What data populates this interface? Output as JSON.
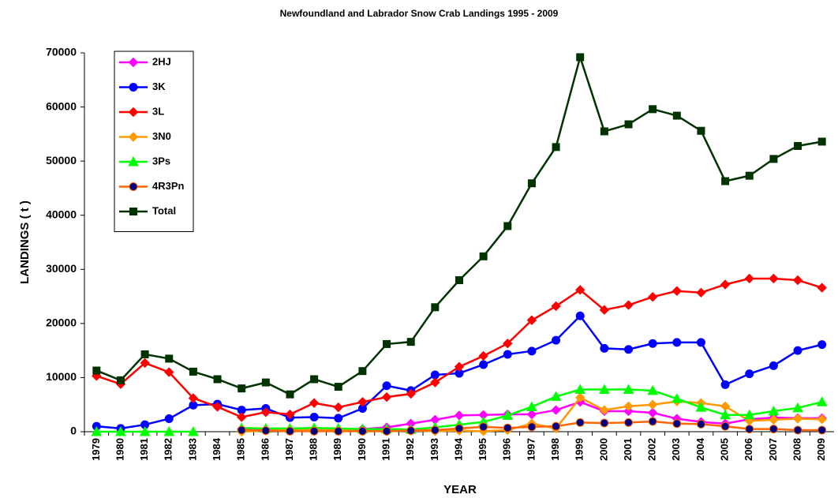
{
  "chart_data": {
    "type": "line",
    "title": "Newfoundland and Labrador Snow Crab Landings 1995 - 2009",
    "x_label": "YEAR",
    "y_label": "LANDINGS ( t )",
    "categories": [
      "1979",
      "1980",
      "1981",
      "1982",
      "1983",
      "1984",
      "1985",
      "1986",
      "1987",
      "1988",
      "1989",
      "1990",
      "1991",
      "1992",
      "1993",
      "1994",
      "1995",
      "1996",
      "1997",
      "1998",
      "1999",
      "2000",
      "2001",
      "2002",
      "2003",
      "2004",
      "2005",
      "2006",
      "2007",
      "2008",
      "2009"
    ],
    "ylim": [
      0,
      70000
    ],
    "yticks": [
      0,
      10000,
      20000,
      30000,
      40000,
      50000,
      60000,
      70000
    ],
    "legend": "top-left",
    "series": [
      {
        "name": "2HJ",
        "color": "#ff00ff",
        "marker": "diamond",
        "values": [
          null,
          null,
          null,
          null,
          null,
          null,
          500,
          400,
          400,
          500,
          400,
          500,
          800,
          1500,
          2200,
          3000,
          3100,
          3200,
          3200,
          4000,
          5500,
          3800,
          3800,
          3500,
          2400,
          1800,
          1500,
          2300,
          2600,
          2500,
          2500
        ]
      },
      {
        "name": "3K",
        "color": "#0000ff",
        "marker": "circle",
        "values": [
          1000,
          600,
          1300,
          2400,
          4900,
          5100,
          4000,
          4300,
          2600,
          2700,
          2500,
          4300,
          8500,
          7600,
          10500,
          10800,
          12400,
          14300,
          14900,
          16900,
          21400,
          15400,
          15200,
          16300,
          16500,
          16500,
          8700,
          10700,
          12200,
          15000,
          16100
        ]
      },
      {
        "name": "3L",
        "color": "#ff0000",
        "marker": "diamond",
        "values": [
          10300,
          8800,
          12700,
          11000,
          6200,
          4600,
          2700,
          3600,
          3200,
          5300,
          4500,
          5500,
          6400,
          7000,
          9100,
          12000,
          14000,
          16300,
          20600,
          23200,
          26200,
          22500,
          23400,
          24900,
          26000,
          25700,
          27200,
          28300,
          28300,
          28000,
          26600
        ]
      },
      {
        "name": "3N0",
        "color": "#ff9900",
        "marker": "diamond",
        "values": [
          null,
          null,
          null,
          null,
          null,
          null,
          0,
          200,
          300,
          500,
          300,
          100,
          100,
          200,
          100,
          200,
          100,
          300,
          1500,
          600,
          6300,
          4000,
          4700,
          5000,
          5600,
          5300,
          4700,
          2000,
          2200,
          2400,
          2300
        ]
      },
      {
        "name": "3Ps",
        "color": "#00ff00",
        "marker": "triangle",
        "values": [
          0,
          0,
          0,
          0,
          0,
          null,
          700,
          600,
          600,
          700,
          600,
          500,
          500,
          400,
          800,
          1300,
          1800,
          3000,
          4600,
          6500,
          7800,
          7800,
          7800,
          7600,
          6100,
          4500,
          3100,
          3100,
          3800,
          4400,
          5500
        ]
      },
      {
        "name": "4R3Pn",
        "color": "#ff6600",
        "marker": "circle",
        "marker_color": "#000080",
        "values": [
          null,
          null,
          null,
          null,
          null,
          null,
          300,
          200,
          100,
          100,
          100,
          100,
          100,
          200,
          300,
          600,
          900,
          700,
          900,
          1000,
          1700,
          1600,
          1700,
          1900,
          1500,
          1400,
          1000,
          500,
          500,
          300,
          300
        ]
      },
      {
        "name": "Total",
        "color": "#003300",
        "marker": "square",
        "values": [
          11300,
          9500,
          14300,
          13500,
          11100,
          9700,
          8000,
          9100,
          6900,
          9700,
          8300,
          11200,
          16200,
          16600,
          23000,
          28000,
          32400,
          38000,
          45900,
          52600,
          69200,
          55500,
          56800,
          59600,
          58400,
          55600,
          46300,
          47300,
          50400,
          52800,
          53600
        ]
      }
    ]
  }
}
